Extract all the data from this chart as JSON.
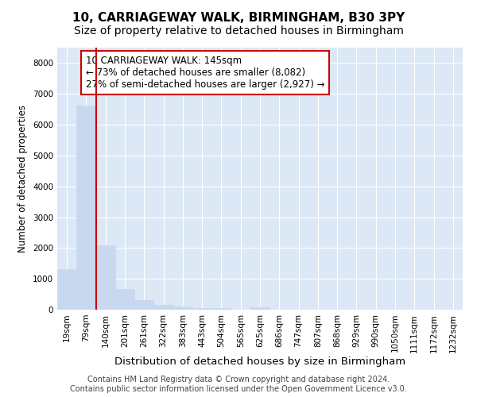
{
  "title": "10, CARRIAGEWAY WALK, BIRMINGHAM, B30 3PY",
  "subtitle": "Size of property relative to detached houses in Birmingham",
  "xlabel": "Distribution of detached houses by size in Birmingham",
  "ylabel": "Number of detached properties",
  "bin_labels": [
    "19sqm",
    "79sqm",
    "140sqm",
    "201sqm",
    "261sqm",
    "322sqm",
    "383sqm",
    "443sqm",
    "504sqm",
    "565sqm",
    "625sqm",
    "686sqm",
    "747sqm",
    "807sqm",
    "868sqm",
    "929sqm",
    "990sqm",
    "1050sqm",
    "1111sqm",
    "1172sqm",
    "1232sqm"
  ],
  "bar_values": [
    1310,
    6620,
    2090,
    660,
    300,
    150,
    100,
    60,
    60,
    0,
    80,
    0,
    0,
    0,
    0,
    0,
    0,
    0,
    0,
    0,
    0
  ],
  "bar_color": "#c8d8ef",
  "bar_edgecolor": "#c8d8ef",
  "annotation_text": "10 CARRIAGEWAY WALK: 145sqm\n← 73% of detached houses are smaller (8,082)\n27% of semi-detached houses are larger (2,927) →",
  "annotation_box_color": "#cc0000",
  "line_bar_index": 2,
  "ylim": [
    0,
    8500
  ],
  "yticks": [
    0,
    1000,
    2000,
    3000,
    4000,
    5000,
    6000,
    7000,
    8000
  ],
  "footer_text": "Contains HM Land Registry data © Crown copyright and database right 2024.\nContains public sector information licensed under the Open Government Licence v3.0.",
  "fig_bg_color": "#ffffff",
  "plot_bg_color": "#dce8f5",
  "grid_color": "#ffffff",
  "title_fontsize": 11,
  "subtitle_fontsize": 10,
  "xlabel_fontsize": 9.5,
  "ylabel_fontsize": 8.5,
  "tick_fontsize": 7.5,
  "annotation_fontsize": 8.5,
  "footer_fontsize": 7
}
